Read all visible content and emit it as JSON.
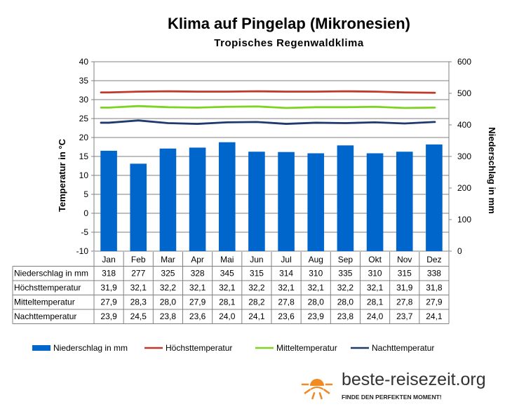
{
  "chart_data": {
    "type": "bar",
    "title": "Klima auf Pingelap (Mikronesien)",
    "subtitle": "Tropisches Regenwaldklima",
    "ylabel_left": "Temperatur in °C",
    "ylabel_right": "Niederschlag in mm",
    "ylim_left": [
      -10,
      40
    ],
    "ylim_right": [
      0,
      600
    ],
    "yticks_left": [
      "40",
      "35",
      "30",
      "25",
      "20",
      "15",
      "10",
      "5",
      "0",
      "-5",
      "-10"
    ],
    "yticks_right": [
      "600",
      "500",
      "400",
      "300",
      "200",
      "100",
      "0"
    ],
    "categories": [
      "Jan",
      "Feb",
      "Mar",
      "Apr",
      "Mai",
      "Jun",
      "Jul",
      "Aug",
      "Sep",
      "Okt",
      "Nov",
      "Dez"
    ],
    "grid": true,
    "legend_position": "bottom",
    "series": [
      {
        "name": "Niederschlag in mm",
        "kind": "bar",
        "axis": "right",
        "color": "#0066cc",
        "values": [
          318,
          277,
          325,
          328,
          345,
          315,
          314,
          310,
          335,
          310,
          315,
          338
        ],
        "labels": [
          "318",
          "277",
          "325",
          "328",
          "345",
          "315",
          "314",
          "310",
          "335",
          "310",
          "315",
          "338"
        ]
      },
      {
        "name": "Höchsttemperatur",
        "kind": "line",
        "axis": "left",
        "color": "#c0392b",
        "values": [
          31.9,
          32.1,
          32.2,
          32.1,
          32.1,
          32.2,
          32.1,
          32.1,
          32.2,
          32.1,
          31.9,
          31.8
        ],
        "labels": [
          "31,9",
          "32,1",
          "32,2",
          "32,1",
          "32,1",
          "32,2",
          "32,1",
          "32,1",
          "32,2",
          "32,1",
          "31,9",
          "31,8"
        ]
      },
      {
        "name": "Mitteltemperatur",
        "kind": "line",
        "axis": "left",
        "color": "#7ed321",
        "values": [
          27.9,
          28.3,
          28.0,
          27.9,
          28.1,
          28.2,
          27.8,
          28.0,
          28.0,
          28.1,
          27.8,
          27.9
        ],
        "labels": [
          "27,9",
          "28,3",
          "28,0",
          "27,9",
          "28,1",
          "28,2",
          "27,8",
          "28,0",
          "28,0",
          "28,1",
          "27,8",
          "27,9"
        ]
      },
      {
        "name": "Nachttemperatur",
        "kind": "line",
        "axis": "left",
        "color": "#1f3a6e",
        "values": [
          23.9,
          24.5,
          23.8,
          23.6,
          24.0,
          24.1,
          23.6,
          23.9,
          23.8,
          24.0,
          23.7,
          24.1
        ],
        "labels": [
          "23,9",
          "24,5",
          "23,8",
          "23,6",
          "24,0",
          "24,1",
          "23,6",
          "23,9",
          "23,8",
          "24,0",
          "23,7",
          "24,1"
        ]
      }
    ]
  },
  "branding": {
    "site": "beste-reisezeit.org",
    "tagline": "FINDE DEN PERFEKTEN MOMENT!",
    "sun_color": "#f08a24"
  }
}
